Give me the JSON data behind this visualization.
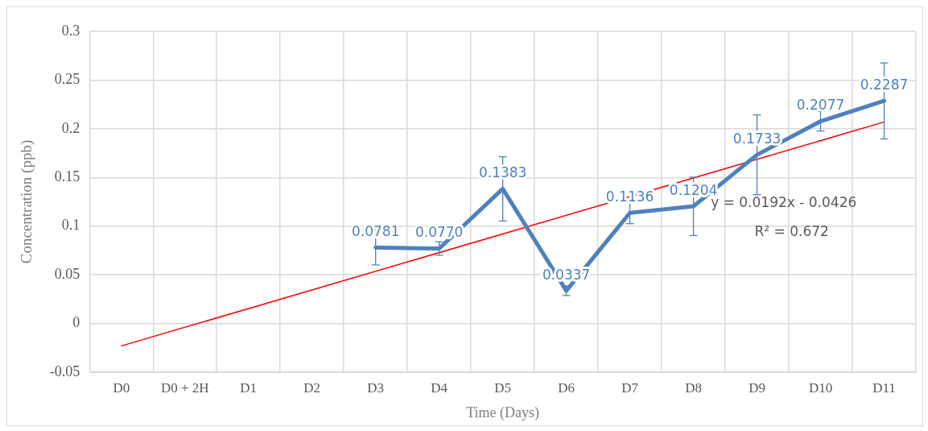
{
  "chart_data": {
    "type": "line",
    "xlabel": "Time (Days)",
    "ylabel": "Concentration (ppb)",
    "categories": [
      "D0",
      "D0 + 2H",
      "D1",
      "D2",
      "D3",
      "D4",
      "D5",
      "D6",
      "D7",
      "D8",
      "D9",
      "D10",
      "D11"
    ],
    "series": [
      {
        "color": "#4f81bd",
        "values": [
          null,
          null,
          null,
          null,
          0.0781,
          0.077,
          0.1383,
          0.0337,
          0.1136,
          0.1204,
          0.1733,
          0.2077,
          0.2287
        ],
        "errors": [
          null,
          null,
          null,
          null,
          0.018,
          0.007,
          0.033,
          0.005,
          0.011,
          0.03,
          0.041,
          0.01,
          0.039
        ],
        "value_labels": [
          null,
          null,
          null,
          null,
          "0.0781",
          "0.0770",
          "0.1383",
          "0.0337",
          "0.1136",
          "0.1204",
          "0.1733",
          "0.2077",
          "0.2287"
        ]
      },
      {
        "color": "#ff0000",
        "values": [
          -0.023,
          null,
          null,
          null,
          null,
          null,
          null,
          null,
          null,
          null,
          null,
          null,
          0.207
        ]
      }
    ],
    "ylim": [
      -0.05,
      0.3
    ],
    "yticks": [
      -0.05,
      0,
      0.05,
      0.1,
      0.15,
      0.2,
      0.25,
      0.3
    ],
    "grid": true,
    "legend": false,
    "marker": "none",
    "line_style": "solid",
    "annotations": [
      "y = 0.0192x - 0.0426",
      "R² = 0.672"
    ]
  }
}
